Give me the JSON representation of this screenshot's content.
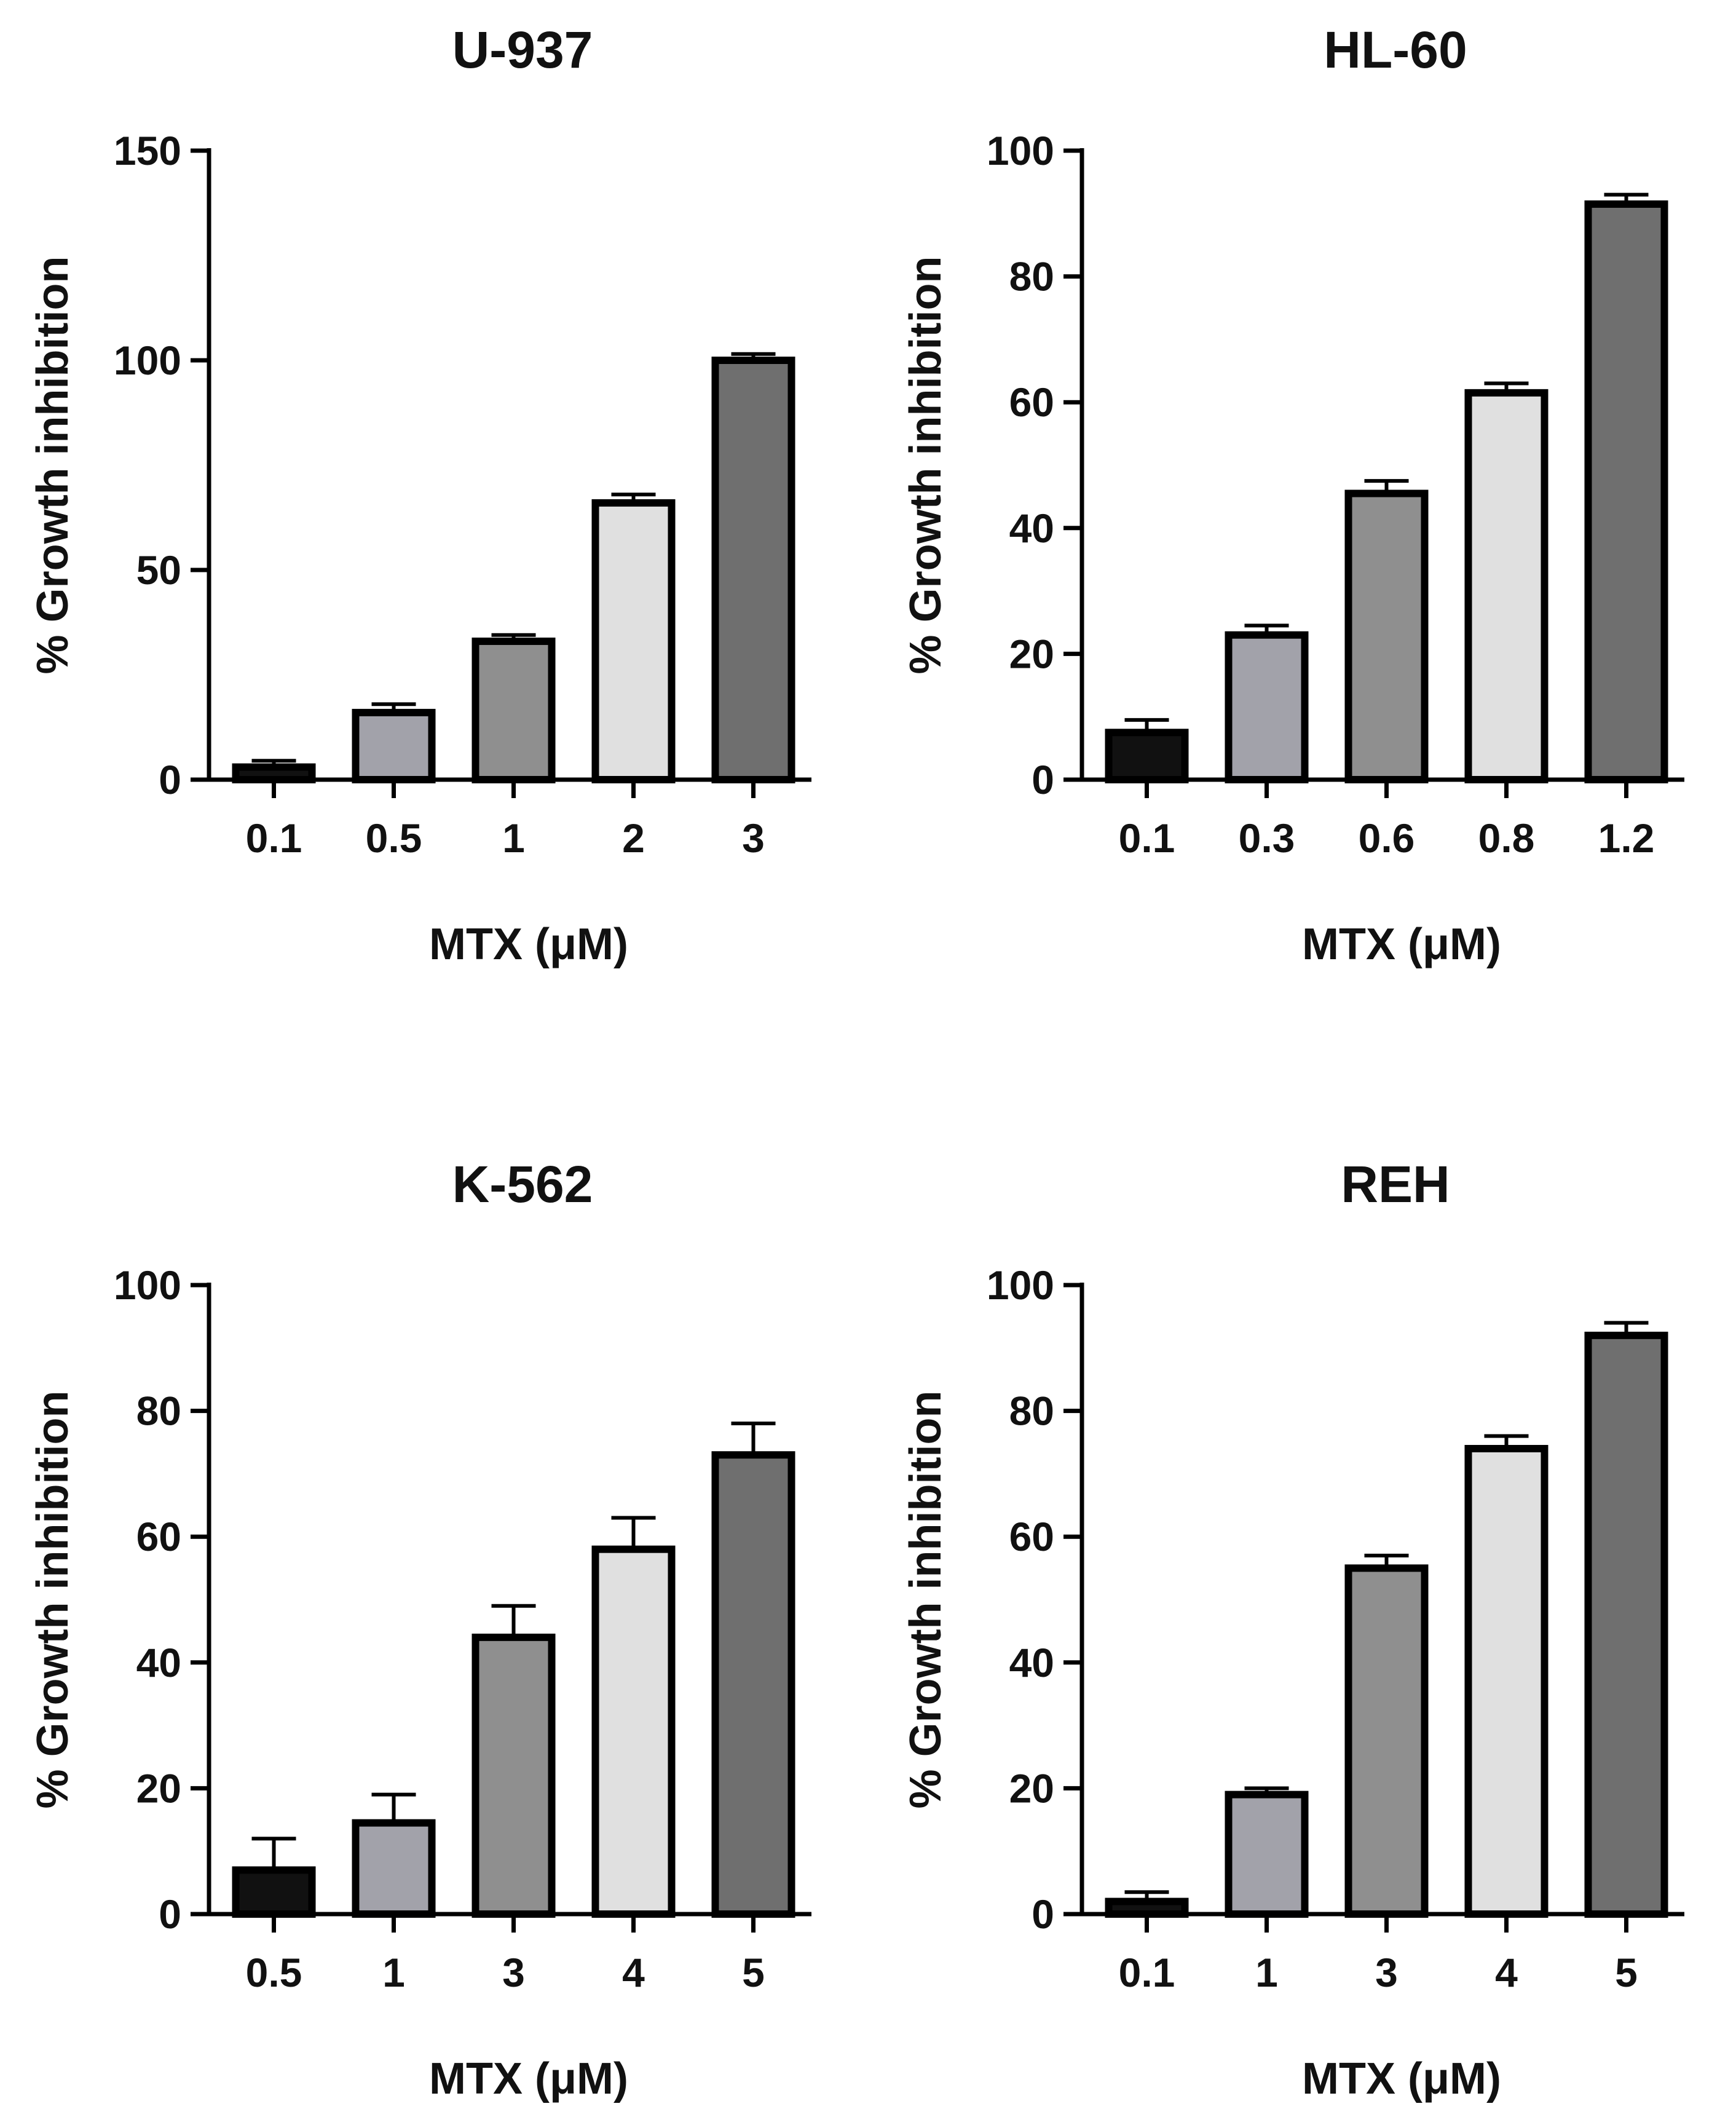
{
  "chart_data": [
    {
      "type": "bar",
      "title": "U-937",
      "xlabel": "MTX (μM)",
      "ylabel": "% Growth inhibition",
      "categories": [
        "0.1",
        "0.5",
        "1",
        "2",
        "3"
      ],
      "values": [
        3,
        16,
        33,
        66,
        100
      ],
      "errors": [
        1.5,
        2,
        1.5,
        2,
        1.5
      ],
      "ylim": [
        0,
        150
      ],
      "yticks": [
        0,
        50,
        100,
        150
      ],
      "colors": [
        "#111111",
        "#a2a2aa",
        "#8f8f8f",
        "#e0e0e0",
        "#6f6f6f"
      ]
    },
    {
      "type": "bar",
      "title": "HL-60",
      "xlabel": "MTX (μM)",
      "ylabel": "% Growth inhibition",
      "categories": [
        "0.1",
        "0.3",
        "0.6",
        "0.8",
        "1.2"
      ],
      "values": [
        7.5,
        23,
        45.5,
        61.5,
        91.5
      ],
      "errors": [
        2,
        1.5,
        2,
        1.5,
        1.5
      ],
      "ylim": [
        0,
        100
      ],
      "yticks": [
        0,
        20,
        40,
        60,
        80,
        100
      ],
      "colors": [
        "#111111",
        "#a2a2aa",
        "#8f8f8f",
        "#e0e0e0",
        "#6f6f6f"
      ]
    },
    {
      "type": "bar",
      "title": "K-562",
      "xlabel": "MTX (μM)",
      "ylabel": "% Growth inhibition",
      "categories": [
        "0.5",
        "1",
        "3",
        "4",
        "5"
      ],
      "values": [
        7,
        14.5,
        44,
        58,
        73
      ],
      "errors": [
        5,
        4.5,
        5,
        5,
        5
      ],
      "ylim": [
        0,
        100
      ],
      "yticks": [
        0,
        20,
        40,
        60,
        80,
        100
      ],
      "colors": [
        "#111111",
        "#a2a2aa",
        "#8f8f8f",
        "#e0e0e0",
        "#6f6f6f"
      ]
    },
    {
      "type": "bar",
      "title": "REH",
      "xlabel": "MTX (μM)",
      "ylabel": "% Growth inhibition",
      "categories": [
        "0.1",
        "1",
        "3",
        "4",
        "5"
      ],
      "values": [
        2,
        19,
        55,
        74,
        92
      ],
      "errors": [
        1.5,
        1,
        2,
        2,
        2
      ],
      "ylim": [
        0,
        100
      ],
      "yticks": [
        0,
        20,
        40,
        60,
        80,
        100
      ],
      "colors": [
        "#111111",
        "#a2a2aa",
        "#8f8f8f",
        "#e0e0e0",
        "#6f6f6f"
      ]
    }
  ]
}
